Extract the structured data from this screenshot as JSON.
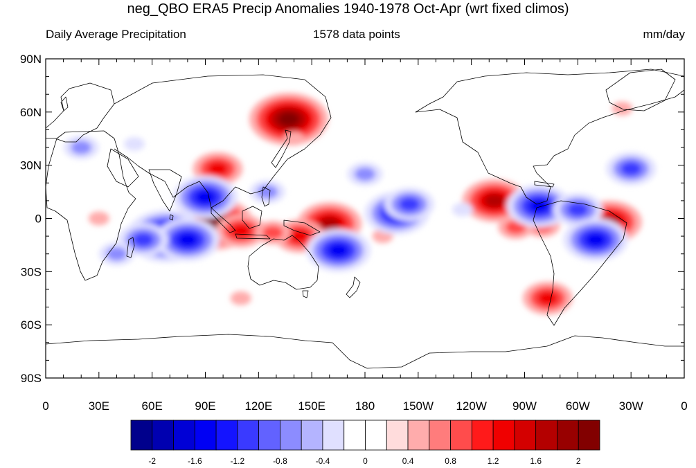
{
  "title": "neg_QBO ERA5 Precip Anomalies 1940-1978 Oct-Apr (wrt fixed climos)",
  "left_string": "Daily Average Precipitation",
  "center_string": "1578 data points",
  "right_string": "mm/day",
  "axes": {
    "lat_ticks": [
      "90N",
      "60N",
      "30N",
      "0",
      "30S",
      "60S",
      "90S"
    ],
    "lon_ticks": [
      "0",
      "30E",
      "60E",
      "90E",
      "120E",
      "150E",
      "180",
      "150W",
      "120W",
      "90W",
      "60W",
      "30W",
      "0"
    ]
  },
  "colorbar": {
    "colors": [
      "#00008c",
      "#0000b0",
      "#0000d6",
      "#0000f4",
      "#1414ff",
      "#3a3aff",
      "#6262ff",
      "#8c8cff",
      "#b4b4ff",
      "#e0e0ff",
      "#ffffff",
      "#ffffff",
      "#ffdcdc",
      "#ffacac",
      "#ff7c7c",
      "#ff4c4c",
      "#ff1a1a",
      "#f00000",
      "#d40000",
      "#b40000",
      "#980000",
      "#820000"
    ],
    "labels": [
      "-2",
      "-1.6",
      "-1.2",
      "-0.8",
      "-0.4",
      "0",
      "0.4",
      "0.8",
      "1.2",
      "1.6",
      "2"
    ]
  },
  "anomalies": [
    {
      "lon": 137,
      "lat": 56,
      "value": 2.0
    },
    {
      "lon": 95,
      "lat": -3,
      "value": 2.0
    },
    {
      "lon": 110,
      "lat": -7,
      "value": 1.2
    },
    {
      "lon": 160,
      "lat": -3,
      "value": 1.6
    },
    {
      "lon": 143,
      "lat": -10,
      "value": 1.2
    },
    {
      "lon": 253,
      "lat": 10,
      "value": 1.6
    },
    {
      "lon": 318,
      "lat": -2,
      "value": 1.6
    },
    {
      "lon": 283,
      "lat": -45,
      "value": 1.2
    },
    {
      "lon": 97,
      "lat": 28,
      "value": 1.2
    },
    {
      "lon": 128,
      "lat": -8,
      "value": 0.8
    },
    {
      "lon": 280,
      "lat": -4,
      "value": 0.8
    },
    {
      "lon": 265,
      "lat": -5,
      "value": 0.8
    },
    {
      "lon": 190,
      "lat": -10,
      "value": 0.4
    },
    {
      "lon": 140,
      "lat": 45,
      "value": 0.4
    },
    {
      "lon": 30,
      "lat": 0,
      "value": 0.4
    },
    {
      "lon": 325,
      "lat": 62,
      "value": 0.4
    },
    {
      "lon": 110,
      "lat": -45,
      "value": 0.4
    },
    {
      "lon": 68,
      "lat": -10,
      "value": -2.0
    },
    {
      "lon": 80,
      "lat": -12,
      "value": -1.6
    },
    {
      "lon": 55,
      "lat": -12,
      "value": -1.2
    },
    {
      "lon": 198,
      "lat": 3,
      "value": -1.6
    },
    {
      "lon": 205,
      "lat": 8,
      "value": -1.2
    },
    {
      "lon": 165,
      "lat": -18,
      "value": -1.6
    },
    {
      "lon": 90,
      "lat": 12,
      "value": -1.6
    },
    {
      "lon": 125,
      "lat": 15,
      "value": -0.8
    },
    {
      "lon": 278,
      "lat": 7,
      "value": -1.6
    },
    {
      "lon": 300,
      "lat": 5,
      "value": -1.2
    },
    {
      "lon": 310,
      "lat": -12,
      "value": -1.6
    },
    {
      "lon": 330,
      "lat": 28,
      "value": -1.2
    },
    {
      "lon": 20,
      "lat": 40,
      "value": -0.8
    },
    {
      "lon": 180,
      "lat": 25,
      "value": -0.8
    },
    {
      "lon": 50,
      "lat": 42,
      "value": -0.4
    },
    {
      "lon": 235,
      "lat": 5,
      "value": -0.4
    },
    {
      "lon": 40,
      "lat": -20,
      "value": -0.8
    }
  ]
}
